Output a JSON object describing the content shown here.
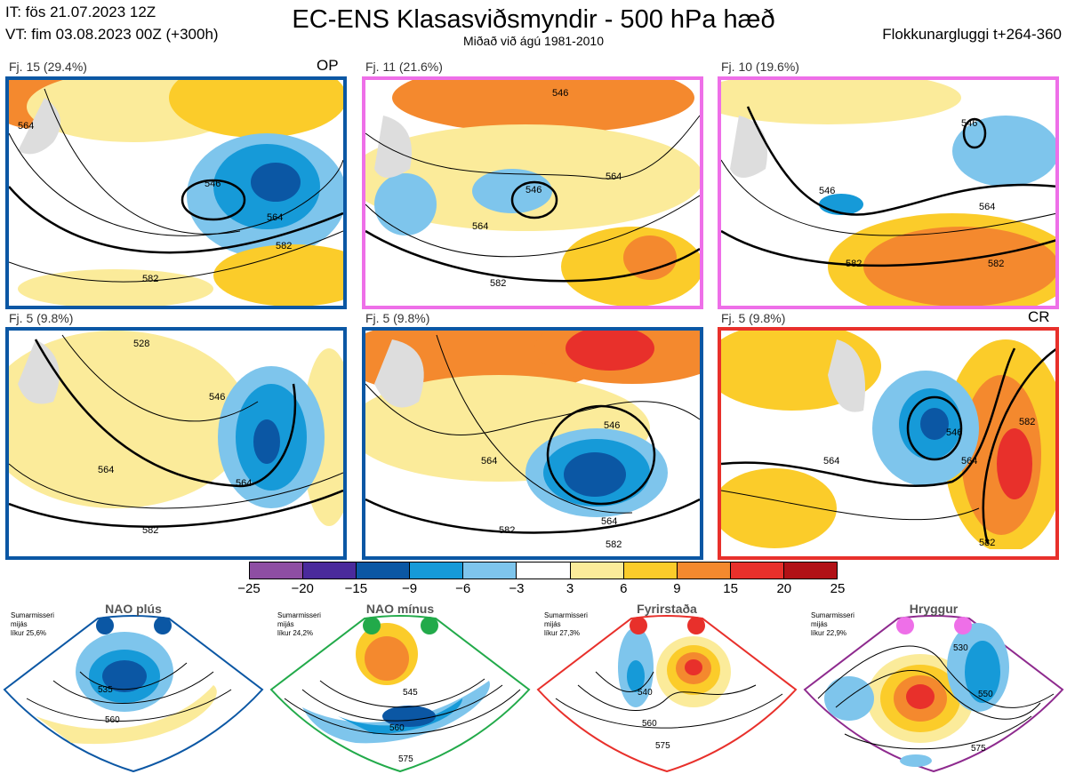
{
  "header": {
    "it": "IT: fös 21.07.2023 12Z",
    "vt": "VT: fim 03.08.2023 00Z  (+300h)",
    "title": "EC-ENS Klasasviðsmyndir - 500 hPa hæð",
    "subtitle": "Miðað við ágú 1981-2010",
    "window": "Flokkunargluggi t+264-360"
  },
  "panels": [
    {
      "label": "Fj. 15 (29.4%)",
      "tag": "OP",
      "border": "#0b57a4",
      "contours": [
        "564",
        "546",
        "564",
        "582",
        "582"
      ]
    },
    {
      "label": "Fj. 11 (21.6%)",
      "tag": "",
      "border": "#ee6fe8",
      "contours": [
        "546",
        "564",
        "564",
        "582",
        "546"
      ]
    },
    {
      "label": "Fj. 10 (19.6%)",
      "tag": "",
      "border": "#ee6fe8",
      "contours": [
        "546",
        "546",
        "564",
        "582",
        "582"
      ]
    },
    {
      "label": "Fj. 5 (9.8%)",
      "tag": "",
      "border": "#0b57a4",
      "contours": [
        "546",
        "564",
        "564",
        "582",
        "528"
      ]
    },
    {
      "label": "Fj. 5 (9.8%)",
      "tag": "",
      "border": "#0b57a4",
      "contours": [
        "546",
        "564",
        "564",
        "582",
        "582"
      ]
    },
    {
      "label": "Fj. 5 (9.8%)",
      "tag": "CR",
      "border": "#e8302b",
      "contours": [
        "546",
        "564",
        "564",
        "582",
        "582"
      ]
    }
  ],
  "colorbar": {
    "colors": [
      "#8e4ea3",
      "#4a2a9c",
      "#0b57a4",
      "#169ad8",
      "#7ec5ec",
      "#ffffff",
      "#fbeb9a",
      "#fbcc2a",
      "#f4892e",
      "#e8302b",
      "#b11116"
    ],
    "ticks": [
      "−25",
      "−20",
      "−15",
      "−9",
      "−6",
      "−3",
      "3",
      "6",
      "9",
      "15",
      "20",
      "25"
    ]
  },
  "regimes": [
    {
      "name": "NAO plús",
      "season": "Sumarmisseri",
      "mean": "mijás",
      "prob": "líkur 25,6%",
      "dot": "#0b57a4",
      "edge": "#0b57a4",
      "contours": [
        "535",
        "560"
      ]
    },
    {
      "name": "NAO mínus",
      "season": "Sumarmisseri",
      "mean": "mijás",
      "prob": "líkur 24,2%",
      "dot": "#22aa4a",
      "edge": "#22aa4a",
      "contours": [
        "545",
        "560",
        "575"
      ]
    },
    {
      "name": "Fyrirstaða",
      "season": "Sumarmisseri",
      "mean": "mijás",
      "prob": "líkur 27,3%",
      "dot": "#e8302b",
      "edge": "#e8302b",
      "contours": [
        "540",
        "560",
        "575"
      ]
    },
    {
      "name": "Hryggur",
      "season": "Sumarmisseri",
      "mean": "mijás",
      "prob": "líkur 22,9%",
      "dot": "#ee6fe8",
      "edge": "#8e2a8e",
      "contours": [
        "530",
        "550",
        "575"
      ]
    }
  ]
}
